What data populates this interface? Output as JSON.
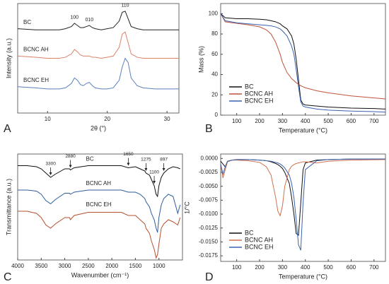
{
  "chart_data": [
    {
      "type": "line",
      "panel": "A",
      "xlabel": "2θ (°)",
      "ylabel": "Intensity (a.u.)",
      "xlim": [
        5,
        32
      ],
      "xticks": [
        10,
        20,
        30
      ],
      "ylim": [
        0,
        100
      ],
      "x": [
        5,
        8,
        10,
        12,
        13,
        14,
        14.5,
        15,
        15.5,
        16,
        16.5,
        17,
        17.5,
        18,
        19,
        20,
        21,
        22,
        22.5,
        23,
        23.5,
        24,
        25,
        26,
        28,
        30,
        32
      ],
      "series": [
        {
          "name": "BC",
          "color": "#222222",
          "values": [
            77,
            76,
            76,
            76,
            77,
            79,
            82,
            80,
            78,
            78,
            79,
            80,
            78,
            77,
            76,
            77,
            78,
            84,
            92,
            93,
            86,
            79,
            77,
            76,
            76,
            76,
            76
          ]
        },
        {
          "name": "BCNC AH",
          "color": "#d9826a",
          "values": [
            52,
            51,
            50,
            50,
            51,
            54,
            58,
            56,
            53,
            52,
            52,
            52,
            51,
            51,
            50,
            51,
            52,
            60,
            72,
            74,
            64,
            54,
            51,
            50,
            50,
            50,
            50
          ]
        },
        {
          "name": "BCNC EH",
          "color": "#5b7fbf",
          "values": [
            24,
            23,
            22,
            22,
            23,
            27,
            32,
            30,
            26,
            25,
            27,
            28,
            25,
            23,
            22,
            22,
            23,
            30,
            42,
            50,
            46,
            32,
            25,
            23,
            22,
            22,
            22
          ]
        }
      ],
      "annotations": [
        {
          "text": "100",
          "x": 14.5
        },
        {
          "text": "010",
          "x": 17
        },
        {
          "text": "110",
          "x": 23
        }
      ]
    },
    {
      "type": "line",
      "panel": "B",
      "xlabel": "Temperature (°C)",
      "ylabel": "Mass (%)",
      "xlim": [
        30,
        750
      ],
      "xticks": [
        100,
        200,
        300,
        400,
        500,
        600,
        700
      ],
      "ylim": [
        0,
        110
      ],
      "yticks": [
        0,
        20,
        40,
        60,
        80,
        100
      ],
      "legend": "lower left",
      "x": [
        30,
        50,
        100,
        150,
        200,
        230,
        250,
        270,
        290,
        300,
        320,
        340,
        350,
        360,
        370,
        380,
        390,
        400,
        450,
        500,
        600,
        700,
        750
      ],
      "series": [
        {
          "name": "BC",
          "color": "#111111",
          "values": [
            100,
            96,
            95,
            95,
            94.5,
            94,
            93,
            92,
            90,
            88,
            85,
            78,
            70,
            55,
            35,
            15,
            11,
            10,
            9,
            8,
            7,
            6.5,
            6
          ]
        },
        {
          "name": "BCNC AH",
          "color": "#c0523a",
          "values": [
            100,
            92,
            90.5,
            89,
            87,
            84,
            80,
            72,
            60,
            52,
            42,
            36,
            34,
            32,
            30.5,
            29,
            28,
            27,
            24,
            22,
            19,
            17,
            16
          ]
        },
        {
          "name": "BCNC EH",
          "color": "#3a62b0",
          "values": [
            100,
            93,
            91,
            90,
            89,
            88.5,
            88,
            87,
            85,
            83,
            78,
            68,
            60,
            45,
            28,
            13,
            9,
            8,
            6,
            5,
            4,
            3.5,
            3
          ]
        }
      ]
    },
    {
      "type": "line",
      "panel": "C",
      "xlabel": "Wavenumber (cm⁻¹)",
      "ylabel": "Transmittance (a.u.)",
      "xlim": [
        4000,
        500
      ],
      "xticks": [
        4000,
        3500,
        3000,
        2500,
        2000,
        1500,
        1000
      ],
      "ylim": [
        0,
        100
      ],
      "annotation_arrows": true,
      "x": [
        4000,
        3800,
        3600,
        3500,
        3400,
        3300,
        3200,
        3000,
        2900,
        2880,
        2800,
        2500,
        2000,
        1800,
        1650,
        1500,
        1400,
        1300,
        1275,
        1200,
        1160,
        1100,
        1060,
        1030,
        1000,
        950,
        897,
        800,
        700,
        600,
        550
      ],
      "series": [
        {
          "name": "BC",
          "color": "#111111",
          "values": [
            89,
            89,
            88,
            86,
            82,
            78,
            81,
            86,
            86,
            85,
            87,
            89,
            89,
            89,
            87,
            88,
            86,
            84,
            82,
            80,
            76,
            70,
            62,
            60,
            70,
            78,
            82,
            86,
            88,
            87,
            86
          ]
        },
        {
          "name": "BCNC AH",
          "color": "#2e5c9e",
          "values": [
            66,
            66,
            65,
            62,
            56,
            53,
            57,
            63,
            63,
            62,
            64,
            66,
            66,
            66,
            64,
            64,
            62,
            58,
            55,
            50,
            44,
            38,
            30,
            26,
            40,
            52,
            58,
            62,
            60,
            44,
            52
          ]
        },
        {
          "name": "BCNC EH",
          "color": "#b4502f",
          "values": [
            46,
            46,
            44,
            40,
            33,
            30,
            34,
            40,
            40,
            38,
            42,
            45,
            45,
            45,
            42,
            42,
            38,
            34,
            30,
            25,
            18,
            10,
            2,
            5,
            15,
            30,
            34,
            38,
            36,
            33,
            40
          ]
        }
      ],
      "annotations": [
        {
          "text": "3300",
          "x": 3300
        },
        {
          "text": "2880",
          "x": 2880
        },
        {
          "text": "1650",
          "x": 1650
        },
        {
          "text": "1275",
          "x": 1275
        },
        {
          "text": "1100",
          "x": 1100
        },
        {
          "text": "897",
          "x": 897
        }
      ]
    },
    {
      "type": "line",
      "panel": "D",
      "xlabel": "Temperature (°C)",
      "ylabel": "1/°C",
      "xlim": [
        30,
        750
      ],
      "xticks": [
        100,
        200,
        300,
        400,
        500,
        600,
        700
      ],
      "ylim": [
        -0.0185,
        0.0008
      ],
      "yticks": [
        {
          "value": 0,
          "label": "0.0000"
        },
        {
          "value": -0.0025,
          "label": "-0.0025"
        },
        {
          "value": -0.005,
          "label": "-0.0050"
        },
        {
          "value": -0.0075,
          "label": "-0.0075"
        },
        {
          "value": -0.01,
          "label": "-0.0100"
        },
        {
          "value": -0.0125,
          "label": "-0.0125"
        },
        {
          "value": -0.015,
          "label": "-0.0150"
        },
        {
          "value": -0.0175,
          "label": "-0.0175"
        }
      ],
      "legend": "lower left",
      "x": [
        30,
        40,
        50,
        60,
        80,
        100,
        150,
        200,
        230,
        250,
        270,
        280,
        290,
        300,
        310,
        330,
        340,
        350,
        360,
        370,
        380,
        390,
        400,
        450,
        500,
        600,
        750
      ],
      "series": [
        {
          "name": "BC",
          "color": "#111111",
          "values": [
            -0.0005,
            -0.001,
            -0.0015,
            -0.0005,
            -0.0003,
            -0.0002,
            -0.0002,
            -0.0003,
            -0.0004,
            -0.0006,
            -0.0009,
            -0.0011,
            -0.0014,
            -0.0018,
            -0.0025,
            -0.0045,
            -0.007,
            -0.01,
            -0.0135,
            -0.0138,
            -0.008,
            -0.002,
            -0.0008,
            -0.0003,
            -0.0002,
            -0.0001,
            -0.0001
          ]
        },
        {
          "name": "BCNC AH",
          "color": "#d0704f",
          "values": [
            -0.001,
            -0.0035,
            -0.002,
            -0.0006,
            -0.0003,
            -0.0003,
            -0.0004,
            -0.0007,
            -0.0015,
            -0.003,
            -0.007,
            -0.0095,
            -0.0103,
            -0.0085,
            -0.005,
            -0.002,
            -0.0014,
            -0.0011,
            -0.0009,
            -0.0008,
            -0.0007,
            -0.0006,
            -0.0006,
            -0.0008,
            -0.0005,
            -0.0003,
            -0.0002
          ]
        },
        {
          "name": "BCNC EH",
          "color": "#3a62b0",
          "values": [
            -0.001,
            -0.0028,
            -0.0015,
            -0.0005,
            -0.0003,
            -0.0002,
            -0.0002,
            -0.0003,
            -0.0004,
            -0.0005,
            -0.0007,
            -0.0008,
            -0.001,
            -0.0013,
            -0.0017,
            -0.003,
            -0.0045,
            -0.007,
            -0.011,
            -0.0155,
            -0.0165,
            -0.008,
            -0.002,
            -0.0004,
            -0.0002,
            -0.0001,
            -0.0001
          ]
        }
      ]
    }
  ]
}
